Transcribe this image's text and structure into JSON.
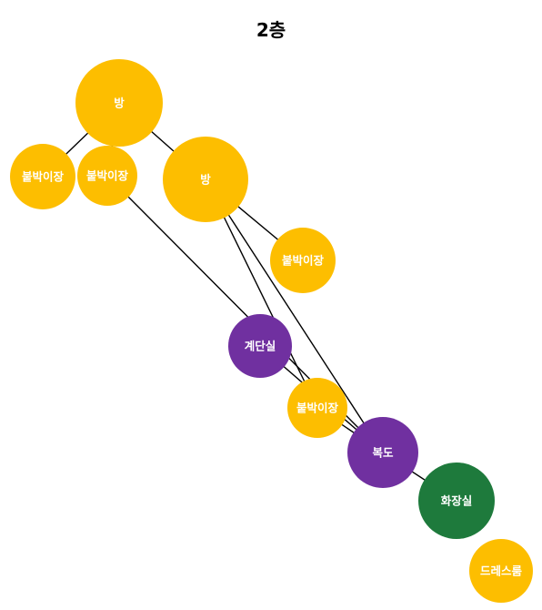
{
  "title": "2층",
  "colors": {
    "room": "#FDBE00",
    "circulation": "#7030A0",
    "bathroom": "#1E7A3C",
    "edge": "#000000",
    "label": "#FFFFFF"
  },
  "nodes": [
    {
      "id": "bang_1",
      "label": "방",
      "kind": "room"
    },
    {
      "id": "closet_left",
      "label": "붙박이장",
      "kind": "room"
    },
    {
      "id": "closet_mid",
      "label": "붙박이장",
      "kind": "room"
    },
    {
      "id": "bang_2",
      "label": "방",
      "kind": "room"
    },
    {
      "id": "closet_right",
      "label": "붙박이장",
      "kind": "room"
    },
    {
      "id": "stairs",
      "label": "계단실",
      "kind": "circulation"
    },
    {
      "id": "closet_lower",
      "label": "붙박이장",
      "kind": "room"
    },
    {
      "id": "corridor",
      "label": "복도",
      "kind": "circulation"
    },
    {
      "id": "bathroom",
      "label": "화장실",
      "kind": "bathroom"
    },
    {
      "id": "dressroom",
      "label": "드레스룸",
      "kind": "room"
    }
  ],
  "edges": [
    {
      "from": "bang_1",
      "to": "closet_left"
    },
    {
      "from": "bang_1",
      "to": "closet_mid"
    },
    {
      "from": "bang_1",
      "to": "bang_2"
    },
    {
      "from": "bang_2",
      "to": "closet_right"
    },
    {
      "from": "bang_2",
      "to": "corridor"
    },
    {
      "from": "bang_2",
      "to": "closet_lower"
    },
    {
      "from": "closet_mid",
      "to": "corridor"
    },
    {
      "from": "stairs",
      "to": "corridor"
    },
    {
      "from": "closet_lower",
      "to": "corridor"
    },
    {
      "from": "corridor",
      "to": "bathroom"
    }
  ]
}
